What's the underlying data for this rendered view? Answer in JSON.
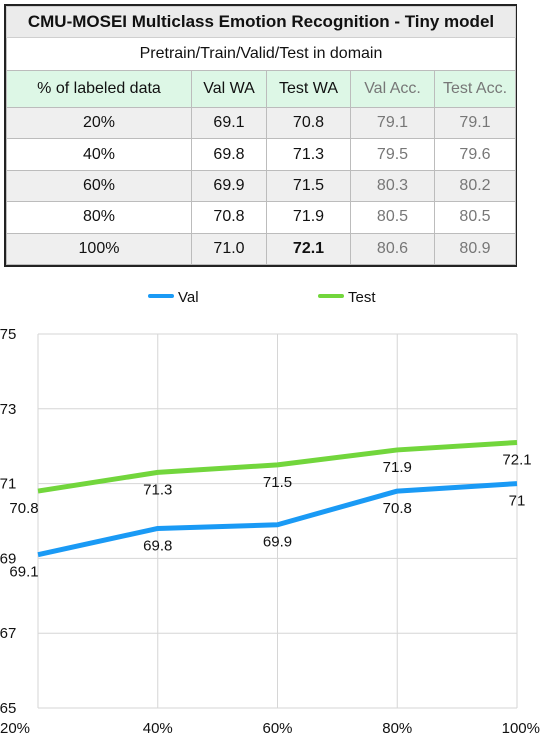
{
  "table": {
    "title": "CMU-MOSEI Multiclass Emotion Recognition - Tiny model",
    "subtitle": "Pretrain/Train/Valid/Test in domain",
    "headers": [
      "% of labeled data",
      "Val WA",
      "Test WA",
      "Val Acc.",
      "Test Acc."
    ],
    "rows": [
      [
        "20%",
        "69.1",
        "70.8",
        "79.1",
        "79.1"
      ],
      [
        "40%",
        "69.8",
        "71.3",
        "79.5",
        "79.6"
      ],
      [
        "60%",
        "69.9",
        "71.5",
        "80.3",
        "80.2"
      ],
      [
        "80%",
        "70.8",
        "71.9",
        "80.5",
        "80.5"
      ],
      [
        "100%",
        "71.0",
        "72.1",
        "80.6",
        "80.9"
      ]
    ]
  },
  "chart_data": {
    "type": "line",
    "categories": [
      "20%",
      "40%",
      "60%",
      "80%",
      "100%"
    ],
    "series": [
      {
        "name": "Val",
        "values": [
          69.1,
          69.8,
          69.9,
          70.8,
          71.0
        ],
        "labels": [
          "69.1",
          "69.8",
          "69.9",
          "70.8",
          "71"
        ],
        "color": "#1a9af5"
      },
      {
        "name": "Test",
        "values": [
          70.8,
          71.3,
          71.5,
          71.9,
          72.1
        ],
        "labels": [
          "70.8",
          "71.3",
          "71.5",
          "71.9",
          "72.1"
        ],
        "color": "#72d63c"
      }
    ],
    "ylim": [
      65,
      75
    ],
    "yticks": [
      "65",
      "67",
      "69",
      "71",
      "73",
      "75"
    ],
    "grid": true,
    "legend": "top"
  }
}
